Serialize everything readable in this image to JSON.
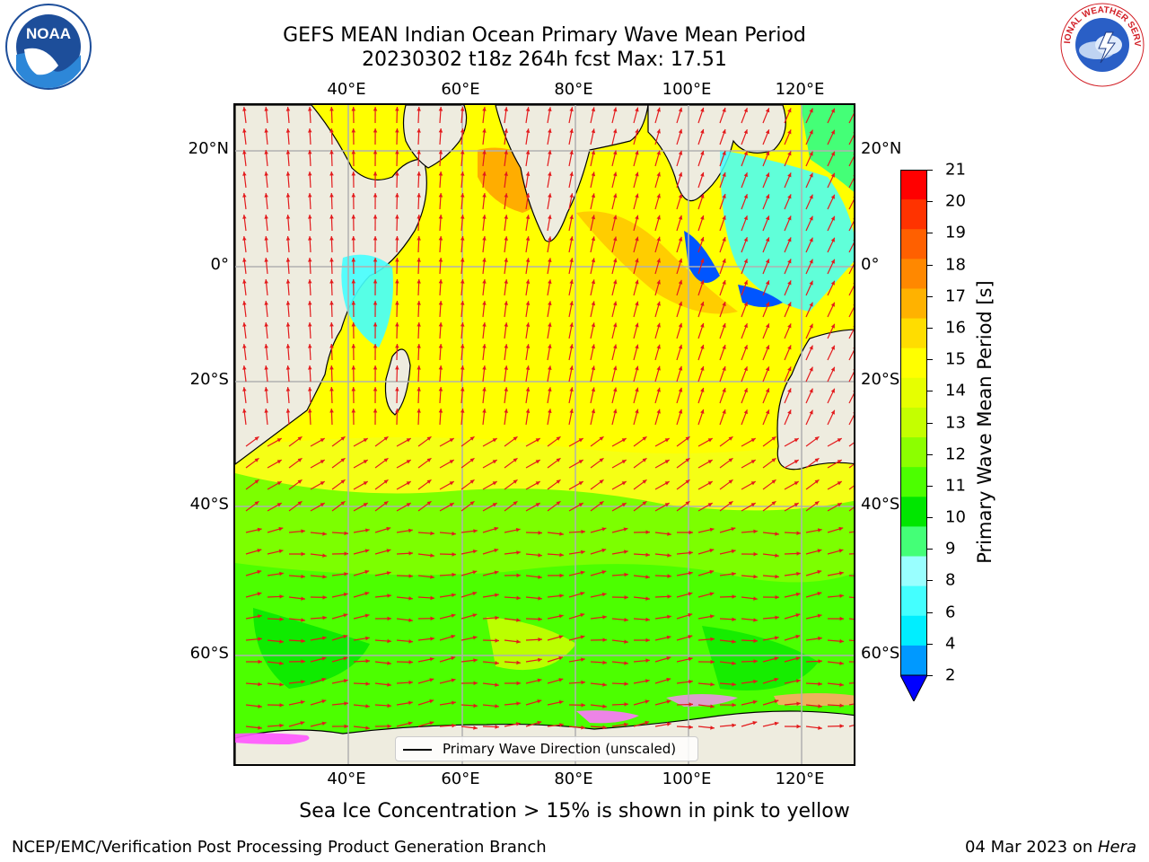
{
  "header": {
    "title_line1": "GEFS MEAN Indian Ocean Primary Wave Mean Period",
    "title_line2": "20230302 t18z 264h fcst   Max: 17.51"
  },
  "logos": {
    "left": "NOAA",
    "left_ring_text": "NATIONAL OCEANIC AND ATMOSPHERIC ADMINISTRATION · U.S. DEPARTMENT OF COMMERCE",
    "right_ring_text": "NATIONAL WEATHER SERVICE"
  },
  "map": {
    "lon_ticks": [
      "40°E",
      "60°E",
      "80°E",
      "100°E",
      "120°E"
    ],
    "lat_ticks": [
      "20°N",
      "0°",
      "20°S",
      "40°S",
      "60°S"
    ],
    "legend_label": "Primary Wave Direction (unscaled)",
    "max_value": 17.51
  },
  "colorbar": {
    "label": "Primary Wave Mean Period [s]",
    "ticks": [
      "21",
      "20",
      "19",
      "18",
      "17",
      "16",
      "15",
      "14",
      "13",
      "12",
      "11",
      "10",
      "9",
      "8",
      "6",
      "4",
      "2"
    ],
    "colors": [
      "#ff0000",
      "#ff3300",
      "#ff6000",
      "#ff8800",
      "#ffb200",
      "#ffdd00",
      "#ffff00",
      "#e6ff00",
      "#c4ff00",
      "#8cff00",
      "#4cff00",
      "#00e600",
      "#44ff77",
      "#99ffff",
      "#44ffff",
      "#00eeff",
      "#0099ff",
      "#0055ff"
    ],
    "under_color": "#0000ff"
  },
  "notes": {
    "sea_ice": "Sea Ice Concentration > 15% is shown in pink to yellow"
  },
  "footer": {
    "left": "NCEP/EMC/Verification Post Processing Product Generation Branch",
    "right_date": "04 Mar 2023 on ",
    "right_host": "Hera"
  }
}
